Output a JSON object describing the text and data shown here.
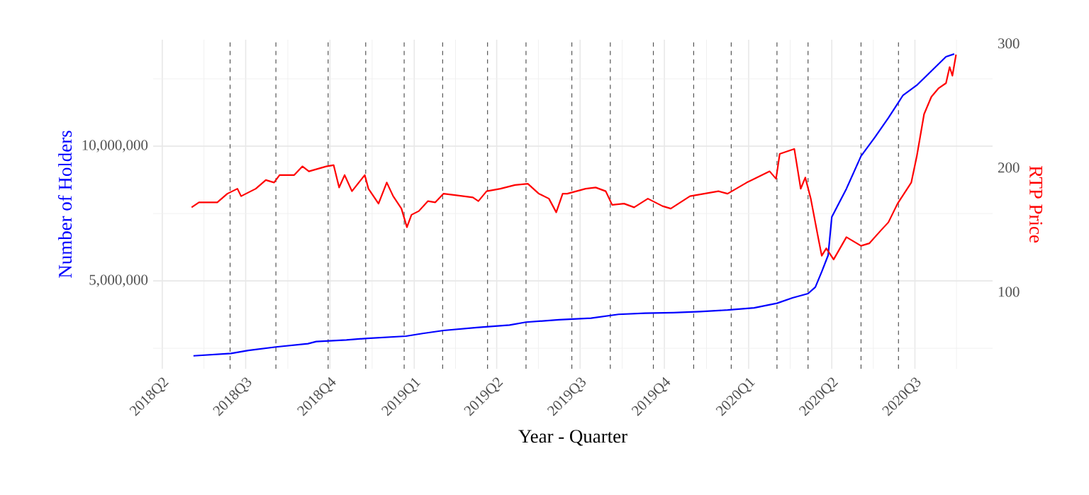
{
  "chart_data": {
    "type": "line",
    "xlabel": "Year - Quarter",
    "ylabel": "Number of Holders",
    "y2label": "RTP Price",
    "xlim": [
      "2018-03-22",
      "2020-09-24"
    ],
    "xticks": [
      {
        "value": "2018-04-01",
        "label": "2018Q2"
      },
      {
        "value": "2018-07-01",
        "label": "2018Q3"
      },
      {
        "value": "2018-10-01",
        "label": "2018Q4"
      },
      {
        "value": "2019-01-01",
        "label": "2019Q1"
      },
      {
        "value": "2019-04-01",
        "label": "2019Q2"
      },
      {
        "value": "2019-07-01",
        "label": "2019Q3"
      },
      {
        "value": "2019-10-01",
        "label": "2019Q4"
      },
      {
        "value": "2020-01-01",
        "label": "2020Q1"
      },
      {
        "value": "2020-04-01",
        "label": "2020Q2"
      },
      {
        "value": "2020-07-01",
        "label": "2020Q3"
      }
    ],
    "ylim": [
      1740000,
      13950000
    ],
    "yticks": [
      {
        "value": 5000000,
        "label": "5,000,000"
      },
      {
        "value": 10000000,
        "label": "10,000,000"
      }
    ],
    "y2lim": [
      38,
      303
    ],
    "y2ticks": [
      100,
      200,
      300
    ],
    "grid": true,
    "marker": "none",
    "line_style": "solid",
    "series": [
      {
        "color": "#0000ff",
        "x": [
          "2018-05-05",
          "2018-06-15",
          "2018-07-04",
          "2018-08-03",
          "2018-09-07",
          "2018-09-16",
          "2018-10-19",
          "2018-11-11",
          "2018-12-23",
          "2019-01-10",
          "2019-02-02",
          "2019-03-10",
          "2019-04-15",
          "2019-05-03",
          "2019-06-08",
          "2019-07-13",
          "2019-08-12",
          "2019-09-10",
          "2019-10-11",
          "2019-11-09",
          "2019-12-09",
          "2020-01-07",
          "2020-02-01",
          "2020-02-18",
          "2020-03-06",
          "2020-03-14",
          "2020-03-21",
          "2020-03-28",
          "2020-04-01",
          "2020-04-17",
          "2020-05-03",
          "2020-05-18",
          "2020-06-02",
          "2020-06-18",
          "2020-07-03",
          "2020-07-19",
          "2020-08-04",
          "2020-08-13"
        ],
        "values": [
          2220000,
          2310000,
          2420000,
          2550000,
          2670000,
          2750000,
          2810000,
          2870000,
          2950000,
          3050000,
          3160000,
          3270000,
          3360000,
          3470000,
          3560000,
          3620000,
          3760000,
          3800000,
          3820000,
          3860000,
          3920000,
          4000000,
          4170000,
          4370000,
          4530000,
          4770000,
          5340000,
          5950000,
          7370000,
          8420000,
          9630000,
          10320000,
          11050000,
          11890000,
          12260000,
          12790000,
          13320000,
          13420000
        ]
      },
      {
        "color": "#ff0000",
        "axis": "y2",
        "x": [
          "2018-05-03",
          "2018-05-11",
          "2018-05-31",
          "2018-06-11",
          "2018-06-22",
          "2018-06-26",
          "2018-07-12",
          "2018-07-23",
          "2018-08-01",
          "2018-08-07",
          "2018-08-23",
          "2018-09-01",
          "2018-09-08",
          "2018-09-27",
          "2018-10-05",
          "2018-10-11",
          "2018-10-17",
          "2018-10-25",
          "2018-11-08",
          "2018-11-12",
          "2018-11-23",
          "2018-12-02",
          "2018-12-09",
          "2018-12-18",
          "2018-12-24",
          "2018-12-29",
          "2019-01-06",
          "2019-01-16",
          "2019-01-24",
          "2019-02-02",
          "2019-02-13",
          "2019-03-06",
          "2019-03-12",
          "2019-03-21",
          "2019-04-05",
          "2019-04-21",
          "2019-05-05",
          "2019-05-17",
          "2019-05-28",
          "2019-06-05",
          "2019-06-12",
          "2019-06-17",
          "2019-07-07",
          "2019-07-18",
          "2019-07-29",
          "2019-08-05",
          "2019-08-18",
          "2019-08-29",
          "2019-09-13",
          "2019-09-29",
          "2019-10-08",
          "2019-10-29",
          "2019-11-29",
          "2019-12-09",
          "2019-12-30",
          "2020-01-24",
          "2020-01-31",
          "2020-02-04",
          "2020-02-20",
          "2020-02-27",
          "2020-03-03",
          "2020-03-09",
          "2020-03-17",
          "2020-03-21",
          "2020-03-26",
          "2020-04-03",
          "2020-04-17",
          "2020-05-03",
          "2020-05-12",
          "2020-05-23",
          "2020-06-02",
          "2020-06-12",
          "2020-06-27",
          "2020-07-03",
          "2020-07-11",
          "2020-07-19",
          "2020-07-27",
          "2020-08-04",
          "2020-08-08",
          "2020-08-11",
          "2020-08-15"
        ],
        "values": [
          168,
          172,
          172,
          179,
          183,
          177,
          183,
          190,
          188,
          194,
          194,
          201,
          197,
          201,
          202,
          184,
          194,
          181,
          194,
          183,
          171,
          188,
          177,
          167,
          152,
          162,
          165,
          173,
          172,
          179,
          178,
          176,
          173,
          181,
          183,
          186,
          187,
          179,
          175,
          164,
          179,
          179,
          183,
          184,
          181,
          170,
          171,
          168,
          175,
          169,
          167,
          177,
          181,
          179,
          188,
          197,
          191,
          211,
          215,
          183,
          192,
          175,
          144,
          129,
          135,
          126,
          144,
          137,
          139,
          148,
          156,
          171,
          188,
          209,
          243,
          257,
          264,
          268,
          281,
          274,
          291
        ]
      }
    ],
    "ref_lines": [
      {
        "axis": "x",
        "value": "2018-06-14",
        "color": "#555555",
        "line_style": "dashed"
      },
      {
        "axis": "x",
        "value": "2018-08-03",
        "color": "#555555",
        "line_style": "dashed"
      },
      {
        "axis": "x",
        "value": "2018-09-29",
        "color": "#555555",
        "line_style": "dashed"
      },
      {
        "axis": "x",
        "value": "2018-11-09",
        "color": "#555555",
        "line_style": "dashed"
      },
      {
        "axis": "x",
        "value": "2018-12-21",
        "color": "#555555",
        "line_style": "dashed"
      },
      {
        "axis": "x",
        "value": "2019-02-01",
        "color": "#555555",
        "line_style": "dashed"
      },
      {
        "axis": "x",
        "value": "2019-03-22",
        "color": "#555555",
        "line_style": "dashed"
      },
      {
        "axis": "x",
        "value": "2019-05-03",
        "color": "#555555",
        "line_style": "dashed"
      },
      {
        "axis": "x",
        "value": "2019-06-22",
        "color": "#555555",
        "line_style": "dashed"
      },
      {
        "axis": "x",
        "value": "2019-08-03",
        "color": "#555555",
        "line_style": "dashed"
      },
      {
        "axis": "x",
        "value": "2019-09-19",
        "color": "#555555",
        "line_style": "dashed"
      },
      {
        "axis": "x",
        "value": "2019-11-02",
        "color": "#555555",
        "line_style": "dashed"
      },
      {
        "axis": "x",
        "value": "2019-12-13",
        "color": "#555555",
        "line_style": "dashed"
      },
      {
        "axis": "x",
        "value": "2020-02-01",
        "color": "#555555",
        "line_style": "dashed"
      },
      {
        "axis": "x",
        "value": "2020-03-06",
        "color": "#555555",
        "line_style": "dashed"
      },
      {
        "axis": "x",
        "value": "2020-05-03",
        "color": "#555555",
        "line_style": "dashed"
      },
      {
        "axis": "x",
        "value": "2020-06-13",
        "color": "#555555",
        "line_style": "dashed"
      }
    ]
  }
}
